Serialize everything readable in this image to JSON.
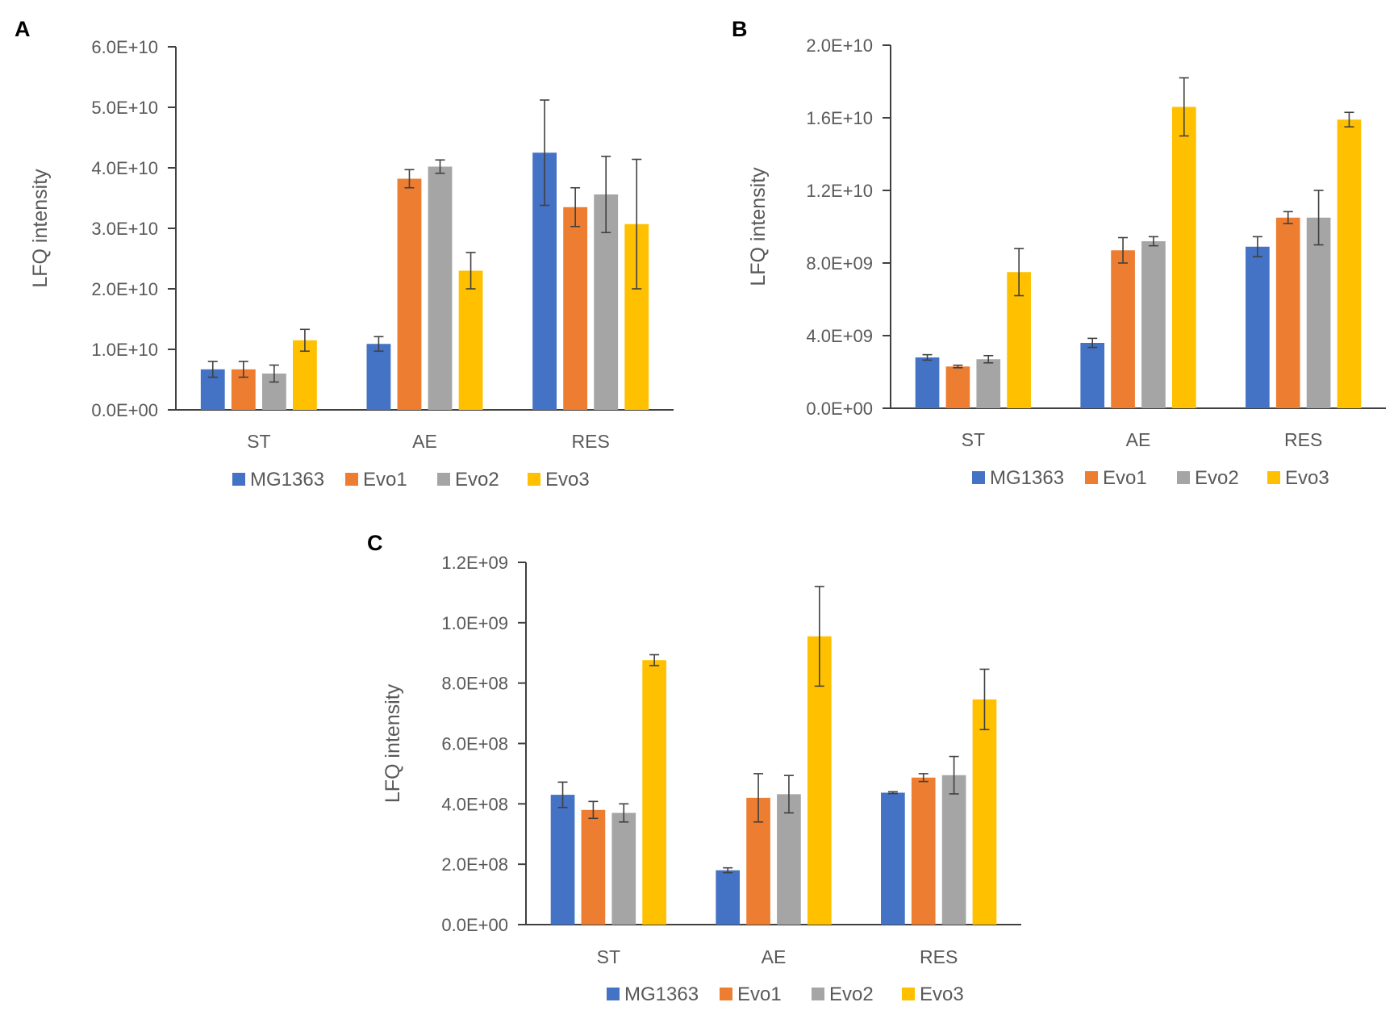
{
  "colors": {
    "MG1363": "#4472C4",
    "Evo1": "#ED7D31",
    "Evo2": "#A5A5A5",
    "Evo3": "#FFC000",
    "axis": "#404040",
    "text": "#595959",
    "error": "#404040"
  },
  "chart_data": [
    {
      "panel": "A",
      "type": "bar",
      "ylabel": "LFQ intensity",
      "xlabel": "",
      "categories": [
        "ST",
        "AE",
        "RES"
      ],
      "ylim": [
        0,
        60000000000
      ],
      "yticks": [
        0,
        10000000000,
        20000000000,
        30000000000,
        40000000000,
        50000000000,
        60000000000
      ],
      "ytick_labels": [
        "0.0E+00",
        "1.0E+10",
        "2.0E+10",
        "3.0E+10",
        "4.0E+10",
        "5.0E+10",
        "6.0E+10"
      ],
      "legend": [
        "MG1363",
        "Evo1",
        "Evo2",
        "Evo3"
      ],
      "series": [
        {
          "name": "MG1363",
          "values": [
            6700000000,
            10900000000,
            42500000000
          ],
          "errors": [
            1300000000,
            1200000000,
            8700000000
          ]
        },
        {
          "name": "Evo1",
          "values": [
            6700000000,
            38200000000,
            33500000000
          ],
          "errors": [
            1300000000,
            1500000000,
            3200000000
          ]
        },
        {
          "name": "Evo2",
          "values": [
            6000000000,
            40200000000,
            35600000000
          ],
          "errors": [
            1400000000,
            1100000000,
            6300000000
          ]
        },
        {
          "name": "Evo3",
          "values": [
            11500000000,
            23000000000,
            30700000000
          ],
          "errors": [
            1800000000,
            3000000000,
            10700000000
          ]
        }
      ]
    },
    {
      "panel": "B",
      "type": "bar",
      "ylabel": "LFQ intensity",
      "xlabel": "",
      "categories": [
        "ST",
        "AE",
        "RES"
      ],
      "ylim": [
        0,
        20000000000
      ],
      "yticks": [
        0,
        4000000000,
        8000000000,
        12000000000,
        16000000000,
        20000000000
      ],
      "ytick_labels": [
        "0.0E+00",
        "4.0E+09",
        "8.0E+09",
        "1.2E+10",
        "1.6E+10",
        "2.0E+10"
      ],
      "legend": [
        "MG1363",
        "Evo1",
        "Evo2",
        "Evo3"
      ],
      "series": [
        {
          "name": "MG1363",
          "values": [
            2800000000,
            3600000000,
            8900000000
          ],
          "errors": [
            150000000,
            250000000,
            550000000
          ]
        },
        {
          "name": "Evo1",
          "values": [
            2300000000,
            8700000000,
            10500000000
          ],
          "errors": [
            70000000,
            700000000,
            330000000
          ]
        },
        {
          "name": "Evo2",
          "values": [
            2700000000,
            9200000000,
            10500000000
          ],
          "errors": [
            200000000,
            250000000,
            1500000000
          ]
        },
        {
          "name": "Evo3",
          "values": [
            7500000000,
            16600000000,
            15900000000
          ],
          "errors": [
            1300000000,
            1600000000,
            400000000
          ]
        }
      ]
    },
    {
      "panel": "C",
      "type": "bar",
      "ylabel": "LFQ intensity",
      "xlabel": "",
      "categories": [
        "ST",
        "AE",
        "RES"
      ],
      "ylim": [
        0,
        1200000000
      ],
      "yticks": [
        0,
        200000000,
        400000000,
        600000000,
        800000000,
        1000000000,
        1200000000
      ],
      "ytick_labels": [
        "0.0E+00",
        "2.0E+08",
        "4.0E+08",
        "6.0E+08",
        "8.0E+08",
        "1.0E+09",
        "1.2E+09"
      ],
      "legend": [
        "MG1363",
        "Evo1",
        "Evo2",
        "Evo3"
      ],
      "series": [
        {
          "name": "MG1363",
          "values": [
            430000000,
            180000000,
            437000000
          ],
          "errors": [
            42000000,
            8000000,
            3000000
          ]
        },
        {
          "name": "Evo1",
          "values": [
            380000000,
            420000000,
            487000000
          ],
          "errors": [
            28000000,
            80000000,
            13000000
          ]
        },
        {
          "name": "Evo2",
          "values": [
            370000000,
            432000000,
            495000000
          ],
          "errors": [
            30000000,
            62000000,
            62000000
          ]
        },
        {
          "name": "Evo3",
          "values": [
            876000000,
            955000000,
            746000000
          ],
          "errors": [
            18000000,
            165000000,
            100000000
          ]
        }
      ]
    }
  ]
}
